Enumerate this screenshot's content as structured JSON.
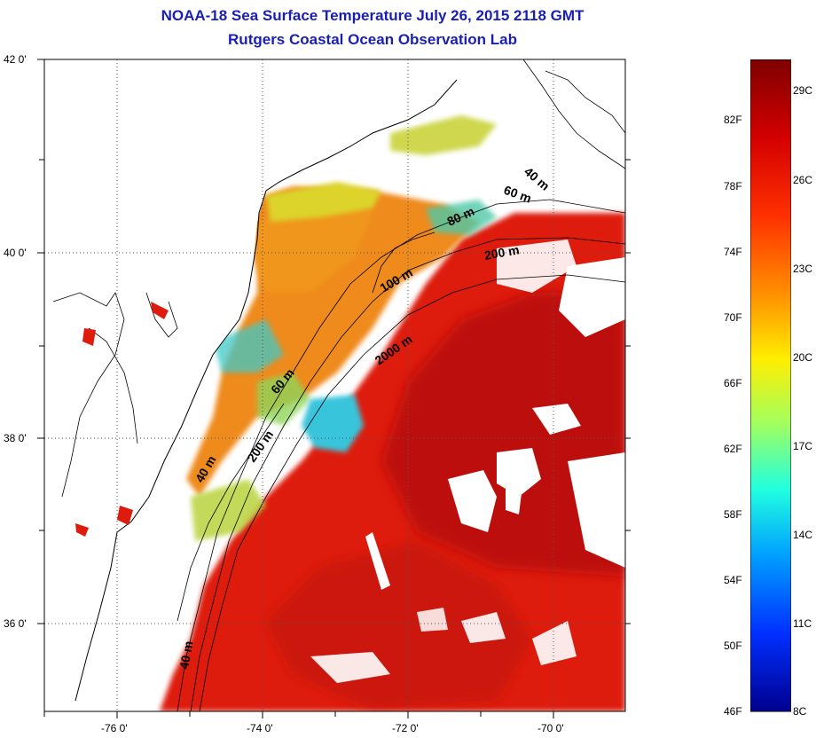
{
  "title": {
    "line1": "NOAA-18 Sea Surface Temperature July 26, 2015 2118 GMT",
    "line2": "Rutgers Coastal Ocean Observation Lab"
  },
  "axes": {
    "lat_ticks": [
      "42 0'",
      "40 0'",
      "38 0'",
      "36 0'"
    ],
    "lon_ticks": [
      "-76 0'",
      "-74 0'",
      "-72 0'",
      "-70 0'"
    ],
    "lat_range": [
      35,
      42
    ],
    "lon_range": [
      -77,
      -69
    ],
    "grid": "dotted"
  },
  "depth_contours": [
    {
      "label": "40 m"
    },
    {
      "label": "60 m"
    },
    {
      "label": "80 m"
    },
    {
      "label": "200 m"
    },
    {
      "label": "100 m"
    },
    {
      "label": "2000 m"
    },
    {
      "label": "60 m"
    },
    {
      "label": "200 m"
    },
    {
      "label": "40 m"
    },
    {
      "label": "40 m"
    }
  ],
  "colorbar": {
    "fahrenheit_ticks": [
      "82F",
      "78F",
      "74F",
      "70F",
      "66F",
      "62F",
      "58F",
      "54F",
      "50F",
      "46F"
    ],
    "celsius_ticks": [
      "29C",
      "26C",
      "23C",
      "20C",
      "17C",
      "14C",
      "11C",
      "8C"
    ],
    "range_c": [
      8,
      31
    ],
    "colors": [
      "#7f0000",
      "#ff0000",
      "#ff8000",
      "#ffff00",
      "#80ff80",
      "#00ffff",
      "#0080ff",
      "#0000ff",
      "#00008f"
    ]
  },
  "colors": {
    "title": "#1a1fb4",
    "warm_sst": "#e01b0a",
    "hot_sst": "#b50d0d",
    "shelf_sst": "#f08a1c",
    "cool_sst": "#35c6d8",
    "land": "#ffffff",
    "cloud": "#ffffff"
  }
}
